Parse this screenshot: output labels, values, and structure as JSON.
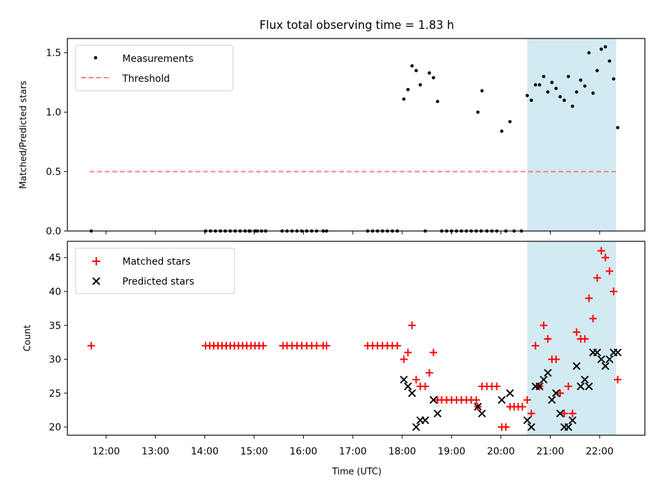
{
  "chart_data": [
    {
      "type": "scatter",
      "title": "Flux total observing time = 1.83 h",
      "ylabel": "Matched/Predicted stars",
      "ylim": [
        0,
        1.62
      ],
      "yticks": [
        0,
        0.5,
        1.0,
        1.5
      ],
      "ytick_labels": [
        "0.0",
        "0.5",
        "1.0",
        "1.5"
      ],
      "highlight_span": {
        "start": "20:32",
        "end": "22:20",
        "color": "#add8e6"
      },
      "threshold": {
        "name": "Threshold",
        "value": 0.5,
        "start": "11:40",
        "end": "22:20",
        "color": "#ff7f7f"
      },
      "legend": {
        "location": "top-left",
        "entries": [
          "Measurements",
          "Threshold"
        ]
      },
      "series": [
        {
          "name": "Measurements",
          "color": "#000000",
          "points": [
            [
              "11:42",
              0
            ],
            [
              "14:01",
              0
            ],
            [
              "14:07",
              0
            ],
            [
              "14:13",
              0
            ],
            [
              "14:19",
              0
            ],
            [
              "14:25",
              0
            ],
            [
              "14:31",
              0
            ],
            [
              "14:37",
              0
            ],
            [
              "14:43",
              0
            ],
            [
              "14:49",
              0
            ],
            [
              "14:55",
              0
            ],
            [
              "15:01",
              0
            ],
            [
              "14:54",
              0
            ],
            [
              "15:04",
              0
            ],
            [
              "15:09",
              0
            ],
            [
              "15:14",
              0
            ],
            [
              "15:34",
              0
            ],
            [
              "15:40",
              0
            ],
            [
              "15:46",
              0
            ],
            [
              "15:52",
              0
            ],
            [
              "15:58",
              0
            ],
            [
              "16:04",
              0
            ],
            [
              "16:10",
              0
            ],
            [
              "16:16",
              0
            ],
            [
              "16:24",
              0
            ],
            [
              "16:28",
              0
            ],
            [
              "17:18",
              0
            ],
            [
              "17:24",
              0
            ],
            [
              "17:30",
              0
            ],
            [
              "17:36",
              0
            ],
            [
              "17:42",
              0
            ],
            [
              "17:48",
              0
            ],
            [
              "17:54",
              0
            ],
            [
              "18:02",
              1.11
            ],
            [
              "18:07",
              1.19
            ],
            [
              "18:12",
              1.39
            ],
            [
              "18:17",
              1.35
            ],
            [
              "18:22",
              1.23
            ],
            [
              "18:28",
              0
            ],
            [
              "18:33",
              1.33
            ],
            [
              "18:38",
              1.29
            ],
            [
              "18:43",
              1.09
            ],
            [
              "18:48",
              0
            ],
            [
              "18:54",
              0
            ],
            [
              "19:00",
              0
            ],
            [
              "19:06",
              0
            ],
            [
              "19:12",
              0
            ],
            [
              "19:18",
              0
            ],
            [
              "19:24",
              0
            ],
            [
              "19:30",
              0
            ],
            [
              "19:36",
              0
            ],
            [
              "19:32",
              1.0
            ],
            [
              "19:37",
              1.18
            ],
            [
              "19:43",
              0
            ],
            [
              "19:49",
              0
            ],
            [
              "19:55",
              0
            ],
            [
              "20:01",
              0.84
            ],
            [
              "20:06",
              0
            ],
            [
              "20:11",
              0.92
            ],
            [
              "20:16",
              0
            ],
            [
              "20:25",
              0
            ],
            [
              "20:32",
              1.14
            ],
            [
              "20:37",
              1.1
            ],
            [
              "20:42",
              1.23
            ],
            [
              "20:47",
              1.23
            ],
            [
              "20:52",
              1.3
            ],
            [
              "20:57",
              1.17
            ],
            [
              "21:02",
              1.25
            ],
            [
              "21:07",
              1.2
            ],
            [
              "21:12",
              1.13
            ],
            [
              "21:17",
              1.1
            ],
            [
              "21:22",
              1.3
            ],
            [
              "21:27",
              1.05
            ],
            [
              "21:32",
              1.17
            ],
            [
              "21:37",
              1.27
            ],
            [
              "21:42",
              1.22
            ],
            [
              "21:47",
              1.5
            ],
            [
              "21:52",
              1.16
            ],
            [
              "21:57",
              1.35
            ],
            [
              "22:02",
              1.53
            ],
            [
              "22:07",
              1.55
            ],
            [
              "22:12",
              1.43
            ],
            [
              "22:17",
              1.28
            ],
            [
              "22:22",
              0.87
            ]
          ]
        }
      ]
    },
    {
      "type": "scatter",
      "xlabel": "Time (UTC)",
      "ylabel": "Count",
      "ylim": [
        18.8,
        47.4
      ],
      "yticks": [
        20,
        25,
        30,
        35,
        40,
        45
      ],
      "ytick_labels": [
        "20",
        "25",
        "30",
        "35",
        "40",
        "45"
      ],
      "xlim": [
        "11:13",
        "22:55"
      ],
      "xticks": [
        "12:00",
        "13:00",
        "14:00",
        "15:00",
        "16:00",
        "17:00",
        "18:00",
        "19:00",
        "20:00",
        "21:00",
        "22:00"
      ],
      "highlight_span": {
        "start": "20:32",
        "end": "22:20",
        "color": "#add8e6"
      },
      "legend": {
        "location": "top-left",
        "entries": [
          "Matched stars",
          "Predicted stars"
        ]
      },
      "series": [
        {
          "name": "Matched stars",
          "marker": "+",
          "color": "#ff0000",
          "points": [
            [
              "11:42",
              32
            ],
            [
              "14:01",
              32
            ],
            [
              "14:06",
              32
            ],
            [
              "14:11",
              32
            ],
            [
              "14:16",
              32
            ],
            [
              "14:21",
              32
            ],
            [
              "14:26",
              32
            ],
            [
              "14:31",
              32
            ],
            [
              "14:36",
              32
            ],
            [
              "14:41",
              32
            ],
            [
              "14:46",
              32
            ],
            [
              "14:51",
              32
            ],
            [
              "14:56",
              32
            ],
            [
              "15:01",
              32
            ],
            [
              "15:06",
              32
            ],
            [
              "15:11",
              32
            ],
            [
              "15:35",
              32
            ],
            [
              "15:40",
              32
            ],
            [
              "15:46",
              32
            ],
            [
              "15:52",
              32
            ],
            [
              "15:58",
              32
            ],
            [
              "16:04",
              32
            ],
            [
              "16:10",
              32
            ],
            [
              "16:16",
              32
            ],
            [
              "16:24",
              32
            ],
            [
              "16:28",
              32
            ],
            [
              "17:18",
              32
            ],
            [
              "17:24",
              32
            ],
            [
              "17:30",
              32
            ],
            [
              "17:36",
              32
            ],
            [
              "17:42",
              32
            ],
            [
              "17:48",
              32
            ],
            [
              "17:54",
              32
            ],
            [
              "18:02",
              30
            ],
            [
              "18:07",
              31
            ],
            [
              "18:12",
              35
            ],
            [
              "18:17",
              27
            ],
            [
              "18:22",
              26
            ],
            [
              "18:28",
              26
            ],
            [
              "18:33",
              28
            ],
            [
              "18:38",
              31
            ],
            [
              "18:43",
              24
            ],
            [
              "18:48",
              24
            ],
            [
              "18:54",
              24
            ],
            [
              "19:00",
              24
            ],
            [
              "19:06",
              24
            ],
            [
              "19:12",
              24
            ],
            [
              "19:18",
              24
            ],
            [
              "19:24",
              24
            ],
            [
              "19:30",
              24
            ],
            [
              "19:32",
              23
            ],
            [
              "19:37",
              26
            ],
            [
              "19:43",
              26
            ],
            [
              "19:49",
              26
            ],
            [
              "19:55",
              26
            ],
            [
              "20:01",
              20
            ],
            [
              "20:06",
              20
            ],
            [
              "20:11",
              23
            ],
            [
              "20:16",
              23
            ],
            [
              "20:21",
              23
            ],
            [
              "20:26",
              23
            ],
            [
              "20:32",
              24
            ],
            [
              "20:37",
              22
            ],
            [
              "20:42",
              32
            ],
            [
              "20:47",
              26
            ],
            [
              "20:52",
              35
            ],
            [
              "20:57",
              33
            ],
            [
              "21:02",
              30
            ],
            [
              "21:07",
              30
            ],
            [
              "21:12",
              25
            ],
            [
              "21:17",
              22
            ],
            [
              "21:22",
              26
            ],
            [
              "21:27",
              22
            ],
            [
              "21:32",
              34
            ],
            [
              "21:37",
              33
            ],
            [
              "21:42",
              33
            ],
            [
              "21:47",
              39
            ],
            [
              "21:52",
              36
            ],
            [
              "21:57",
              42
            ],
            [
              "22:02",
              46
            ],
            [
              "22:07",
              45
            ],
            [
              "22:12",
              43
            ],
            [
              "22:17",
              40
            ],
            [
              "22:22",
              27
            ]
          ]
        },
        {
          "name": "Predicted stars",
          "marker": "x",
          "color": "#000000",
          "points": [
            [
              "18:02",
              27
            ],
            [
              "18:07",
              26
            ],
            [
              "18:12",
              25
            ],
            [
              "18:17",
              20
            ],
            [
              "18:22",
              21
            ],
            [
              "18:28",
              21
            ],
            [
              "18:38",
              24
            ],
            [
              "18:43",
              22
            ],
            [
              "19:32",
              23
            ],
            [
              "19:37",
              22
            ],
            [
              "20:01",
              24
            ],
            [
              "20:11",
              25
            ],
            [
              "20:32",
              21
            ],
            [
              "20:37",
              20
            ],
            [
              "20:42",
              26
            ],
            [
              "20:47",
              26
            ],
            [
              "20:52",
              27
            ],
            [
              "20:57",
              28
            ],
            [
              "21:02",
              24
            ],
            [
              "21:07",
              25
            ],
            [
              "21:12",
              22
            ],
            [
              "21:17",
              20
            ],
            [
              "21:22",
              20
            ],
            [
              "21:27",
              21
            ],
            [
              "21:32",
              29
            ],
            [
              "21:37",
              26
            ],
            [
              "21:42",
              27
            ],
            [
              "21:47",
              26
            ],
            [
              "21:52",
              31
            ],
            [
              "21:57",
              31
            ],
            [
              "22:02",
              30
            ],
            [
              "22:07",
              29
            ],
            [
              "22:12",
              30
            ],
            [
              "22:17",
              31
            ],
            [
              "22:22",
              31
            ]
          ]
        }
      ]
    }
  ]
}
